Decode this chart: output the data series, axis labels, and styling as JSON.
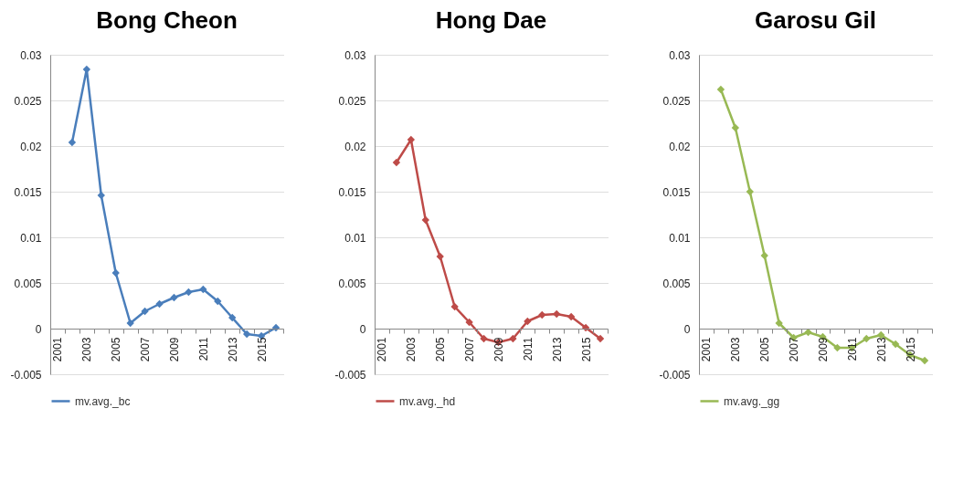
{
  "chart_data": [
    {
      "type": "line",
      "title": "Bong Cheon",
      "categories": [
        "2001",
        null,
        "2003",
        null,
        "2005",
        null,
        "2007",
        null,
        "2009",
        null,
        "2011",
        null,
        "2013",
        null,
        "2015",
        null
      ],
      "series": [
        {
          "name": "mv.avg._bc",
          "color": "#4a7ebb",
          "values": [
            null,
            0.0204,
            0.0284,
            0.0146,
            0.0061,
            0.0006,
            0.0019,
            0.0027,
            0.0034,
            0.004,
            0.0043,
            0.003,
            0.0012,
            -0.0006,
            -0.0008,
            0.0001
          ]
        }
      ],
      "ylim": [
        -0.005,
        0.03
      ],
      "yticks": [
        -0.005,
        0,
        0.005,
        0.01,
        0.015,
        0.02,
        0.025,
        0.03
      ],
      "grid": "y",
      "legend": "bottom",
      "marker": "diamond"
    },
    {
      "type": "line",
      "title": "Hong Dae",
      "categories": [
        "2001",
        null,
        "2003",
        null,
        "2005",
        null,
        "2007",
        null,
        "2009",
        null,
        "2011",
        null,
        "2013",
        null,
        "2015",
        null
      ],
      "series": [
        {
          "name": "mv.avg._hd",
          "color": "#be4b48",
          "values": [
            null,
            0.0182,
            0.0207,
            0.0119,
            0.0079,
            0.0024,
            0.0007,
            -0.0011,
            -0.0015,
            -0.0011,
            0.0008,
            0.0015,
            0.0016,
            0.0013,
            0.0001,
            -0.0011
          ]
        }
      ],
      "ylim": [
        -0.005,
        0.03
      ],
      "yticks": [
        -0.005,
        0,
        0.005,
        0.01,
        0.015,
        0.02,
        0.025,
        0.03
      ],
      "grid": "y",
      "legend": "bottom",
      "marker": "diamond"
    },
    {
      "type": "line",
      "title": "Garosu Gil",
      "categories": [
        "2001",
        null,
        "2003",
        null,
        "2005",
        null,
        "2007",
        null,
        "2009",
        null,
        "2011",
        null,
        "2013",
        null,
        "2015",
        null
      ],
      "series": [
        {
          "name": "mv.avg._gg",
          "color": "#98b954",
          "values": [
            null,
            0.0262,
            0.022,
            0.015,
            0.008,
            0.0006,
            -0.001,
            -0.0004,
            -0.0009,
            -0.0021,
            -0.0021,
            -0.0011,
            -0.0007,
            -0.0017,
            -0.0029,
            -0.0035
          ]
        }
      ],
      "ylim": [
        -0.005,
        0.03
      ],
      "yticks": [
        -0.005,
        0,
        0.005,
        0.01,
        0.015,
        0.02,
        0.025,
        0.03
      ],
      "grid": "y",
      "legend": "bottom",
      "marker": "diamond"
    }
  ]
}
